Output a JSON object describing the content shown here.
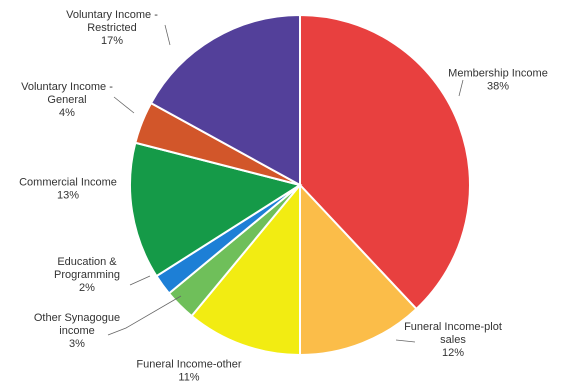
{
  "chart_data": {
    "type": "pie",
    "title": "",
    "start_angle_deg": 0,
    "direction": "clockwise",
    "slices": [
      {
        "label_lines": [
          "Membership Income"
        ],
        "percent_label": "38%",
        "value": 38,
        "color": "#e8403f"
      },
      {
        "label_lines": [
          "Funeral Income-plot",
          "sales"
        ],
        "percent_label": "12%",
        "value": 12,
        "color": "#fbbd49"
      },
      {
        "label_lines": [
          "Funeral Income-other"
        ],
        "percent_label": "11%",
        "value": 11,
        "color": "#f2ec12"
      },
      {
        "label_lines": [
          "Other Synagogue",
          "income"
        ],
        "percent_label": "3%",
        "value": 3,
        "color": "#6fbf5a"
      },
      {
        "label_lines": [
          "Education &",
          "Programming"
        ],
        "percent_label": "2%",
        "value": 2,
        "color": "#1d7fd6"
      },
      {
        "label_lines": [
          "Commercial Income"
        ],
        "percent_label": "13%",
        "value": 13,
        "color": "#159a48"
      },
      {
        "label_lines": [
          "Voluntary Income -",
          "General"
        ],
        "percent_label": "4%",
        "value": 4,
        "color": "#d2562a"
      },
      {
        "label_lines": [
          "Voluntary Income -",
          "Restricted"
        ],
        "percent_label": "17%",
        "value": 17,
        "color": "#53409a"
      }
    ]
  }
}
